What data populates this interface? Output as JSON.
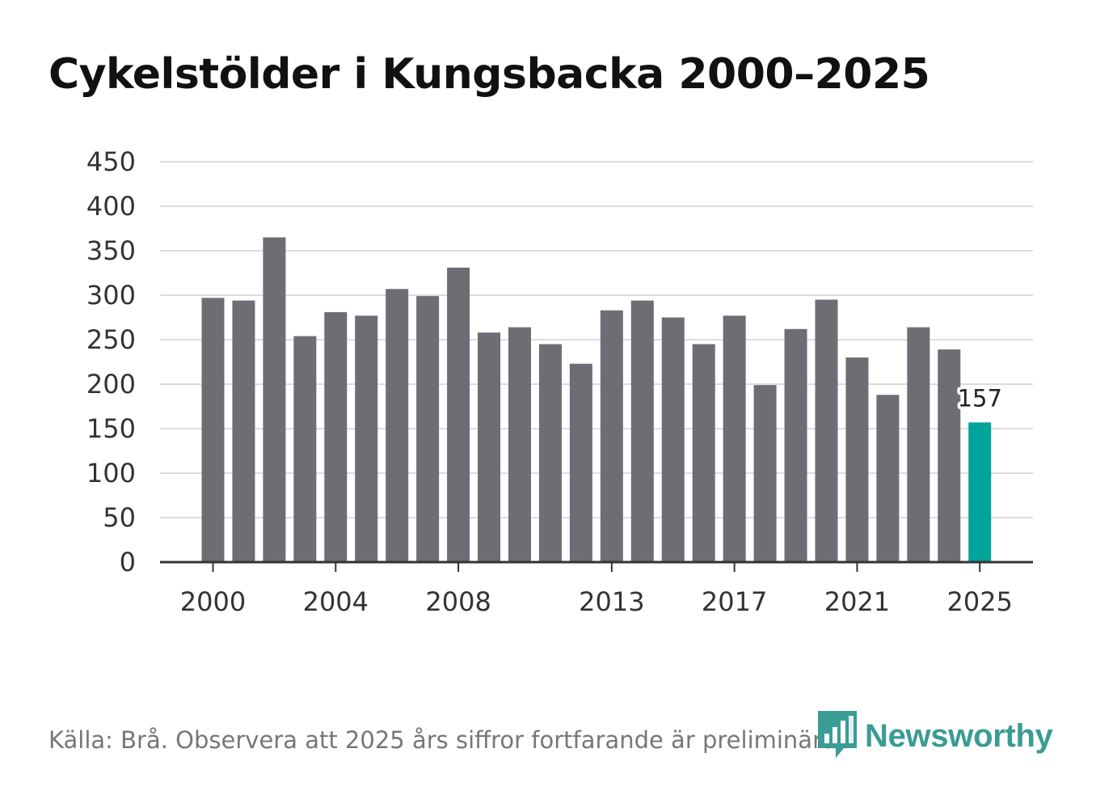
{
  "title": "Cykelstölder i Kungsbacka 2000–2025",
  "source": "Källa: Brå. Observera att 2025 års siffror fortfarande är preliminära.",
  "brand": {
    "name": "Newsworthy",
    "icon": "newsworthy-logo-icon",
    "color": "#3a9c94"
  },
  "chart_data": {
    "type": "bar",
    "title": "Cykelstölder i Kungsbacka 2000–2025",
    "xlabel": "",
    "ylabel": "",
    "ylim": [
      0,
      450
    ],
    "yticks": [
      0,
      50,
      100,
      150,
      200,
      250,
      300,
      350,
      400,
      450
    ],
    "xtick_labels": [
      "2000",
      "2004",
      "2008",
      "2013",
      "2017",
      "2021",
      "2025"
    ],
    "categories": [
      "2000",
      "2001",
      "2002",
      "2003",
      "2004",
      "2005",
      "2006",
      "2007",
      "2008",
      "2009",
      "2010",
      "2011",
      "2012",
      "2013",
      "2014",
      "2015",
      "2016",
      "2017",
      "2018",
      "2019",
      "2020",
      "2021",
      "2022",
      "2023",
      "2024",
      "2025"
    ],
    "values": [
      297,
      294,
      365,
      254,
      281,
      277,
      307,
      299,
      331,
      258,
      264,
      245,
      223,
      283,
      294,
      275,
      245,
      277,
      199,
      262,
      295,
      230,
      188,
      264,
      239,
      157
    ],
    "bar_color": "#6e6d74",
    "highlight_color": "#00a499",
    "highlight_category": "2025",
    "data_label": {
      "category": "2025",
      "text": "157"
    },
    "grid": true,
    "legend": "none"
  }
}
